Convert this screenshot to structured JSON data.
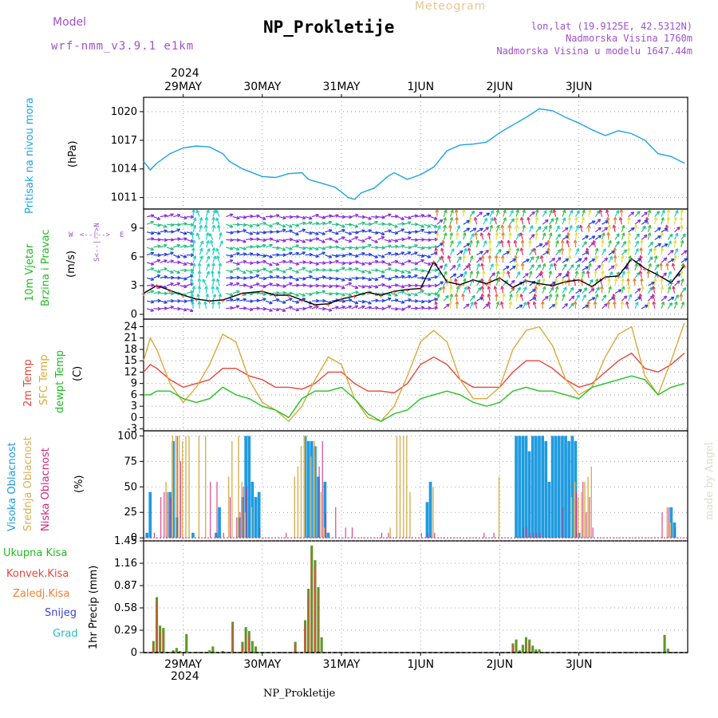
{
  "header": {
    "model_label": "Model",
    "model_name": "wrf-nmm_v3.9.1  e1km",
    "title": "NP_Prokletije",
    "meteogram": "Meteogram",
    "lonlat": "lon,lat (19.9125E, 42.5312N)",
    "altitude": "Nadmorska Visina 1760m",
    "model_altitude": "Nadmorska Visina u modelu 1647.44m",
    "year_top": "2024",
    "year_bottom": "2024",
    "footer": "NP_Prokletije",
    "watermark": "made by Angel"
  },
  "colors": {
    "pressure": "#1ca3e8",
    "temp2m": "#e8453c",
    "sfc": "#dca83c",
    "dewpt": "#22c322",
    "high_cloud": "#1e9be0",
    "mid_cloud": "#d8b050",
    "low_cloud": "#d0287a",
    "precip": "#5a9a28",
    "violet": "#a050d0",
    "green_label": "#22bb22",
    "snow": "#4040e0",
    "grad": "#20c0c0",
    "orange": "#f08030"
  },
  "days": [
    "29MAY",
    "30MAY",
    "31MAY",
    "1JUN",
    "2JUN",
    "3JUN"
  ],
  "panel_labels": {
    "pressure": {
      "name": "Pritisak na nivou mora",
      "unit": "(hPa)"
    },
    "wind": {
      "name1": "10m Vjetar",
      "name2": "Brzina i Pravac",
      "unit": "(m/s)",
      "compass_w": "W",
      "compass_e": "E",
      "compass_arrow": "<--|-->",
      "compass_vertical": "S<--|-->N"
    },
    "temp": {
      "name1": "2m Temp",
      "name2": "SFC Temp",
      "name3": "dewpt Temp",
      "unit": "(C)"
    },
    "cloud": {
      "name1": "Visoka Oblacnost",
      "name2": "Srednja Oblacnost",
      "name3": "Niska Oblacnost",
      "unit": "(%)"
    },
    "precip": {
      "items": [
        "Ukupna Kisa",
        "Konvek.Kisa",
        "Zaledj.Kisa",
        "Snijeg",
        "Grad"
      ],
      "unit": "1hr Precip (mm)"
    }
  },
  "chart_data": [
    {
      "type": "line",
      "panel": "pressure",
      "ylabel": "(hPa)",
      "yticks": [
        1011,
        1014,
        1017,
        1020
      ],
      "ylim": [
        1009.8,
        1021.5
      ],
      "grid": true,
      "x_unit": "hours from 28 May 12 UTC",
      "series": [
        {
          "name": "Pritisak na nivou mora",
          "x": [
            0,
            2,
            4,
            8,
            12,
            16,
            20,
            24,
            26,
            30,
            36,
            40,
            44,
            48,
            50,
            54,
            58,
            60,
            62,
            64,
            66,
            70,
            74,
            76,
            80,
            84,
            88,
            92,
            96,
            100,
            104,
            108,
            112,
            116,
            120,
            124,
            128,
            132,
            136,
            140,
            144,
            148,
            152,
            156,
            160,
            164
          ],
          "y": [
            1014.8,
            1013.9,
            1014.6,
            1015.6,
            1016.2,
            1016.4,
            1016.3,
            1015.6,
            1014.8,
            1014.0,
            1013.2,
            1013.1,
            1013.5,
            1013.6,
            1012.9,
            1012.5,
            1012.1,
            1011.6,
            1011.0,
            1010.8,
            1011.5,
            1012.0,
            1013.2,
            1013.6,
            1012.9,
            1013.4,
            1014.2,
            1015.9,
            1016.5,
            1016.6,
            1016.8,
            1017.8,
            1018.6,
            1019.4,
            1020.3,
            1020.1,
            1019.4,
            1018.8,
            1018.1,
            1017.5,
            1018.0,
            1017.7,
            1017.0,
            1015.6,
            1015.3,
            1014.6
          ]
        }
      ]
    },
    {
      "type": "line",
      "panel": "wind",
      "ylabel": "(m/s)",
      "yticks": [
        0,
        3,
        6,
        9
      ],
      "ylim": [
        -0.5,
        11
      ],
      "grid": true,
      "x_unit": "hours from 28 May 12 UTC",
      "series": [
        {
          "name": "10m Vjetar Brzina",
          "x": [
            0,
            4,
            8,
            12,
            16,
            20,
            24,
            30,
            36,
            40,
            44,
            48,
            52,
            56,
            60,
            64,
            68,
            72,
            76,
            80,
            84,
            88,
            92,
            96,
            100,
            104,
            108,
            112,
            116,
            120,
            124,
            128,
            132,
            136,
            140,
            144,
            148,
            152,
            156,
            160,
            164
          ],
          "y": [
            2.2,
            3.0,
            2.5,
            2.0,
            1.6,
            1.4,
            1.5,
            2.2,
            2.4,
            2.0,
            2.0,
            1.5,
            1.0,
            1.1,
            1.6,
            1.9,
            2.3,
            2.0,
            2.4,
            2.6,
            2.7,
            5.5,
            3.4,
            3.1,
            3.6,
            3.2,
            3.8,
            2.8,
            3.5,
            3.2,
            3.0,
            3.4,
            3.6,
            2.9,
            3.9,
            4.0,
            5.8,
            4.8,
            4.1,
            3.3,
            5.1
          ]
        }
      ],
      "arrow_rows": [
        0.6,
        1.4,
        2.2,
        3.0,
        3.8,
        4.6,
        5.4,
        6.2,
        7.0,
        7.8,
        8.6,
        9.4,
        10.2
      ],
      "arrow_columns_per_hour": 0.5,
      "direction_hint": "mostly W-E in first half, S-N with mixed speeds in second half"
    },
    {
      "type": "line",
      "panel": "temp",
      "ylabel": "(C)",
      "yticks": [
        -3,
        0,
        3,
        6,
        9,
        12,
        15,
        18,
        21,
        24
      ],
      "ylim": [
        -3.5,
        26
      ],
      "grid": true,
      "x_unit": "hours from 28 May 12 UTC",
      "series": [
        {
          "name": "2m Temp",
          "x": [
            0,
            2,
            4,
            8,
            12,
            16,
            20,
            24,
            28,
            32,
            36,
            40,
            44,
            48,
            52,
            56,
            60,
            64,
            68,
            72,
            76,
            80,
            84,
            88,
            92,
            96,
            100,
            104,
            108,
            112,
            116,
            120,
            124,
            128,
            132,
            136,
            140,
            144,
            148,
            152,
            156,
            160,
            164
          ],
          "y": [
            12,
            14,
            13,
            10,
            8,
            9,
            10,
            13,
            13,
            11,
            10,
            8,
            8,
            7.5,
            9,
            12,
            12,
            9,
            7,
            7,
            6.5,
            9,
            14,
            16,
            14,
            10,
            8,
            8,
            8,
            12,
            15,
            15,
            13,
            10,
            8,
            9,
            12,
            15,
            17,
            13,
            12,
            14,
            17
          ]
        },
        {
          "name": "SFC Temp",
          "x": [
            0,
            2,
            4,
            8,
            12,
            16,
            20,
            24,
            28,
            32,
            36,
            40,
            44,
            48,
            52,
            56,
            60,
            64,
            68,
            72,
            76,
            80,
            84,
            88,
            92,
            96,
            100,
            104,
            108,
            112,
            116,
            120,
            124,
            128,
            132,
            136,
            140,
            144,
            148,
            152,
            156,
            160,
            164
          ],
          "y": [
            15,
            21,
            18,
            9,
            4,
            8,
            14,
            22,
            20,
            10,
            4,
            2,
            -1,
            3,
            10,
            16,
            14,
            5,
            0,
            -1,
            3,
            11,
            20,
            23,
            20,
            10,
            5,
            5,
            8,
            18,
            23,
            24,
            19,
            10,
            6,
            8,
            16,
            22,
            24,
            11,
            6,
            15,
            25
          ]
        },
        {
          "name": "dewpt Temp",
          "x": [
            0,
            2,
            4,
            8,
            12,
            16,
            20,
            24,
            28,
            32,
            36,
            40,
            44,
            48,
            52,
            56,
            60,
            64,
            68,
            72,
            76,
            80,
            84,
            88,
            92,
            96,
            100,
            104,
            108,
            112,
            116,
            120,
            124,
            128,
            132,
            136,
            140,
            144,
            148,
            152,
            156,
            160,
            164
          ],
          "y": [
            6,
            6,
            7,
            7,
            5,
            4,
            5,
            8,
            6,
            5,
            3,
            2,
            0,
            5,
            7,
            7,
            8,
            5,
            1,
            -1,
            1,
            2,
            5,
            6,
            7,
            6,
            4,
            3,
            4,
            7,
            8,
            7,
            7,
            6,
            5,
            8,
            9,
            10,
            11,
            10,
            6,
            8,
            9
          ]
        }
      ]
    },
    {
      "type": "bar",
      "panel": "cloud",
      "ylabel": "(%)",
      "yticks": [
        0,
        25,
        50,
        75,
        100
      ],
      "ylim": [
        -3,
        105
      ],
      "grid": true,
      "x_unit": "hours from 28 May 12 UTC",
      "series": [
        {
          "name": "Visoka Oblacnost",
          "x": [
            1,
            2,
            8,
            9,
            10,
            15,
            22,
            23,
            29,
            30,
            31,
            32,
            33,
            34,
            35,
            49,
            50,
            51,
            52,
            53,
            55,
            56,
            86,
            87,
            113,
            114,
            115,
            116,
            117,
            118,
            119,
            120,
            121,
            122,
            123,
            124,
            125,
            126,
            127,
            128,
            129,
            130,
            131,
            132,
            160,
            161
          ],
          "y": [
            5,
            45,
            45,
            95,
            20,
            5,
            5,
            30,
            20,
            40,
            100,
            100,
            55,
            40,
            45,
            100,
            95,
            95,
            90,
            60,
            55,
            5,
            35,
            55,
            100,
            100,
            100,
            100,
            85,
            100,
            100,
            100,
            100,
            95,
            55,
            100,
            100,
            100,
            100,
            100,
            95,
            100,
            95,
            5,
            30,
            15
          ]
        },
        {
          "name": "Srednja Oblacnost",
          "x": [
            7,
            9,
            10,
            11,
            12,
            13,
            14,
            17,
            19,
            26,
            27,
            29,
            30,
            31,
            33,
            46,
            47,
            48,
            49,
            51,
            52,
            54,
            55,
            75,
            77,
            78,
            79,
            80,
            81,
            88,
            108,
            130,
            131,
            132,
            133,
            134,
            135,
            136,
            159,
            160
          ],
          "y": [
            55,
            100,
            100,
            100,
            95,
            100,
            100,
            100,
            100,
            60,
            95,
            100,
            55,
            25,
            30,
            60,
            70,
            90,
            100,
            80,
            95,
            45,
            10,
            10,
            100,
            100,
            100,
            100,
            45,
            50,
            60,
            40,
            55,
            40,
            45,
            55,
            60,
            70,
            30,
            15
          ]
        },
        {
          "name": "Niska Oblacnost",
          "x": [
            3,
            5,
            6,
            7,
            8,
            10,
            11,
            20,
            22,
            24,
            26,
            28,
            29,
            30,
            31,
            35,
            43,
            53,
            54,
            55,
            58,
            61,
            63,
            72,
            74,
            84,
            86,
            88,
            103,
            106,
            115,
            116,
            117,
            118,
            119,
            120,
            127,
            131,
            133,
            134,
            135,
            136,
            157,
            159,
            161
          ],
          "y": [
            5,
            40,
            45,
            45,
            40,
            100,
            75,
            55,
            55,
            5,
            40,
            20,
            25,
            50,
            50,
            10,
            5,
            70,
            95,
            25,
            30,
            10,
            10,
            5,
            5,
            5,
            5,
            5,
            5,
            5,
            10,
            10,
            5,
            5,
            5,
            5,
            30,
            45,
            55,
            25,
            40,
            10,
            25,
            30,
            10
          ]
        }
      ]
    },
    {
      "type": "bar",
      "panel": "precip",
      "ylabel": "1hr Precip (mm)",
      "yticks": [
        0,
        0.29,
        0.58,
        0.87,
        1.16,
        1.45
      ],
      "ylim": [
        0,
        1.45
      ],
      "grid": true,
      "x_unit": "hours from 28 May 12 UTC",
      "series": [
        {
          "name": "Ukupna Kisa",
          "x": [
            3,
            4,
            5,
            6,
            7,
            9,
            10,
            11,
            12,
            13,
            15,
            18,
            20,
            21,
            22,
            24,
            25,
            27,
            30,
            31,
            32,
            33,
            34,
            35,
            36,
            45,
            46,
            49,
            50,
            51,
            52,
            53,
            54,
            112,
            113,
            114,
            115,
            116,
            117,
            118,
            119,
            120,
            158,
            159
          ],
          "y": [
            0.15,
            0.72,
            0.35,
            0.32,
            0.01,
            0.03,
            0.06,
            0.02,
            0.01,
            0.24,
            0.01,
            0.01,
            0.03,
            0.08,
            0.01,
            0.02,
            0.01,
            0.4,
            0.14,
            0.33,
            0.28,
            0.15,
            0.08,
            0.01,
            0.01,
            0.01,
            0.14,
            0.42,
            0.83,
            1.39,
            1.2,
            0.85,
            0.2,
            0.12,
            0.17,
            0.03,
            0.1,
            0.2,
            0.17,
            0.09,
            0.04,
            0.04,
            0.23,
            0.05
          ]
        },
        {
          "name": "Konvek.Kisa",
          "x": [
            3,
            4,
            5,
            6,
            27,
            30,
            31,
            32,
            46,
            49,
            50,
            51,
            52,
            53,
            112,
            113,
            116,
            117
          ],
          "y": [
            0.1,
            0.66,
            0.3,
            0.28,
            0.35,
            0.1,
            0.28,
            0.22,
            0.1,
            0.36,
            0.75,
            1.3,
            1.12,
            0.8,
            0.09,
            0.14,
            0.15,
            0.13
          ]
        },
        {
          "name": "Zaledj.Kisa",
          "x": [],
          "y": []
        },
        {
          "name": "Snijeg",
          "x": [],
          "y": []
        },
        {
          "name": "Grad",
          "x": [],
          "y": []
        }
      ]
    }
  ]
}
